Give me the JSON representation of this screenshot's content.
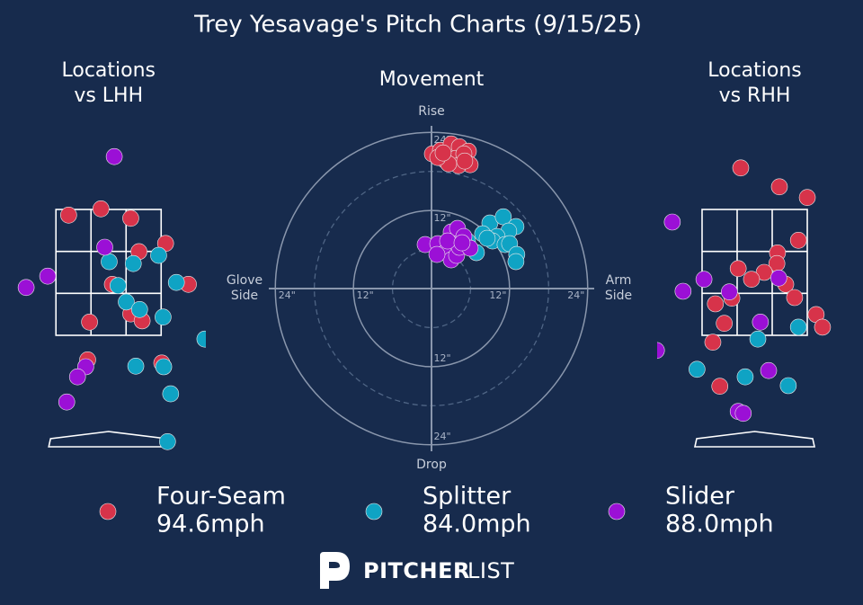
{
  "title": "Trey Yesavage's Pitch Charts (9/15/25)",
  "velocities": [
    "94.6mph",
    "84.0mph",
    "88.0mph"
  ],
  "brand": [
    "PITCHER",
    "LIST"
  ],
  "chart_data": [
    {
      "type": "scatter",
      "title": [
        "Locations",
        "vs LHH"
      ],
      "xlim": [
        -1.5,
        1.5
      ],
      "ylim": [
        -0.5,
        5
      ],
      "strike_zone": true,
      "series": [
        {
          "name": "Four-Seam",
          "color": "#d7334a",
          "x": [
            -0.63,
            -0.12,
            0.35,
            0.48,
            0.9,
            0.06,
            0.35,
            0.53,
            -0.3,
            1.26,
            -0.33,
            0.84
          ],
          "values": [
            3.41,
            3.51,
            3.36,
            2.83,
            2.96,
            2.31,
            1.84,
            1.73,
            1.71,
            2.31,
            1.11,
            1.06
          ]
        },
        {
          "name": "Splitter",
          "color": "#0fa3c4",
          "x": [
            0.01,
            0.39,
            0.79,
            1.07,
            0.15,
            0.28,
            0.49,
            0.86,
            1.52,
            0.43,
            0.87,
            0.98,
            0.93
          ],
          "values": [
            2.67,
            2.64,
            2.77,
            2.34,
            2.29,
            2.03,
            1.91,
            1.79,
            1.44,
            1.01,
            1.0,
            0.57,
            -0.19
          ]
        },
        {
          "name": "Slider",
          "color": "#9b10d6",
          "x": [
            0.09,
            -0.06,
            -0.96,
            -1.3,
            -0.36,
            -0.49,
            -0.66
          ],
          "values": [
            4.34,
            2.9,
            2.44,
            2.26,
            1.0,
            0.84,
            0.44
          ]
        }
      ]
    },
    {
      "type": "scatter",
      "title": [
        "Movement"
      ],
      "polar_grid": true,
      "xlim": [
        -25,
        25
      ],
      "ylim": [
        -25,
        25
      ],
      "x_labels": [
        [
          "Glove",
          "Side"
        ],
        [
          "Arm",
          "Side"
        ]
      ],
      "y_labels": [
        "Rise",
        "Drop"
      ],
      "xticks": [
        {
          "value": -24,
          "label": "24\""
        },
        {
          "value": -12,
          "label": "12\""
        },
        {
          "value": 12,
          "label": "12\""
        },
        {
          "value": 24,
          "label": "24\""
        }
      ],
      "yticks": [
        {
          "value": -24,
          "label": "24\""
        },
        {
          "value": -12,
          "label": "12\""
        },
        {
          "value": 12,
          "label": "12\""
        },
        {
          "value": 24,
          "label": "24\""
        }
      ],
      "series": [
        {
          "name": "Four-Seam",
          "color": "#d7334a",
          "x": [
            0.14,
            1.38,
            3.03,
            4.28,
            5.66,
            2.07,
            3.72,
            4.97,
            5.93,
            4.14,
            2.62,
            0.97,
            1.79,
            5.1
          ],
          "values": [
            20.69,
            21.24,
            22.21,
            21.79,
            21.1,
            19.72,
            20.0,
            20.69,
            19.03,
            18.9,
            19.17,
            20.14,
            20.83,
            19.59
          ]
        },
        {
          "name": "Splitter",
          "color": "#0fa3c4",
          "x": [
            8.97,
            11.03,
            12.97,
            11.86,
            10.07,
            7.86,
            9.38,
            11.31,
            12.0,
            13.1,
            12.97,
            6.9,
            5.52,
            8.55
          ],
          "values": [
            10.07,
            11.03,
            9.52,
            8.83,
            8.0,
            8.41,
            7.31,
            6.76,
            6.9,
            5.24,
            4.14,
            5.52,
            7.31,
            7.72
          ]
        },
        {
          "name": "Slider",
          "color": "#9b10d6",
          "x": [
            -0.97,
            0.97,
            2.07,
            3.03,
            3.86,
            3.03,
            4.0,
            4.97,
            4.28,
            5.93,
            0.83,
            2.48,
            4.69
          ],
          "values": [
            6.76,
            6.9,
            5.52,
            4.41,
            5.1,
            8.69,
            9.24,
            8.0,
            6.34,
            6.21,
            5.24,
            7.31,
            7.03
          ]
        }
      ]
    },
    {
      "type": "scatter",
      "title": [
        "Locations",
        "vs RHH"
      ],
      "xlim": [
        -1.5,
        1.5
      ],
      "ylim": [
        -0.5,
        5
      ],
      "strike_zone": true,
      "series": [
        {
          "name": "Four-Seam",
          "color": "#d7334a",
          "x": [
            -0.22,
            0.39,
            0.83,
            0.69,
            0.36,
            0.35,
            -0.26,
            0.15,
            -0.05,
            0.49,
            -0.36,
            0.63,
            -0.62,
            0.97,
            1.07,
            -0.48,
            -0.66,
            -0.55
          ],
          "values": [
            4.16,
            3.86,
            3.69,
            3.01,
            2.81,
            2.64,
            2.56,
            2.5,
            2.39,
            2.31,
            2.09,
            2.1,
            2.0,
            1.83,
            1.63,
            1.69,
            1.39,
            0.69
          ]
        },
        {
          "name": "Splitter",
          "color": "#0fa3c4",
          "x": [
            0.05,
            0.69,
            -0.91,
            -0.15,
            0.53
          ],
          "values": [
            1.44,
            1.63,
            0.96,
            0.84,
            0.7
          ]
        },
        {
          "name": "Slider",
          "color": "#9b10d6",
          "x": [
            -1.3,
            -0.8,
            -1.13,
            -0.4,
            0.38,
            0.09,
            0.22,
            -0.26,
            -0.18,
            -1.55
          ],
          "values": [
            3.3,
            2.39,
            2.2,
            2.19,
            2.41,
            1.71,
            0.94,
            0.29,
            0.26,
            1.26
          ]
        }
      ]
    }
  ]
}
